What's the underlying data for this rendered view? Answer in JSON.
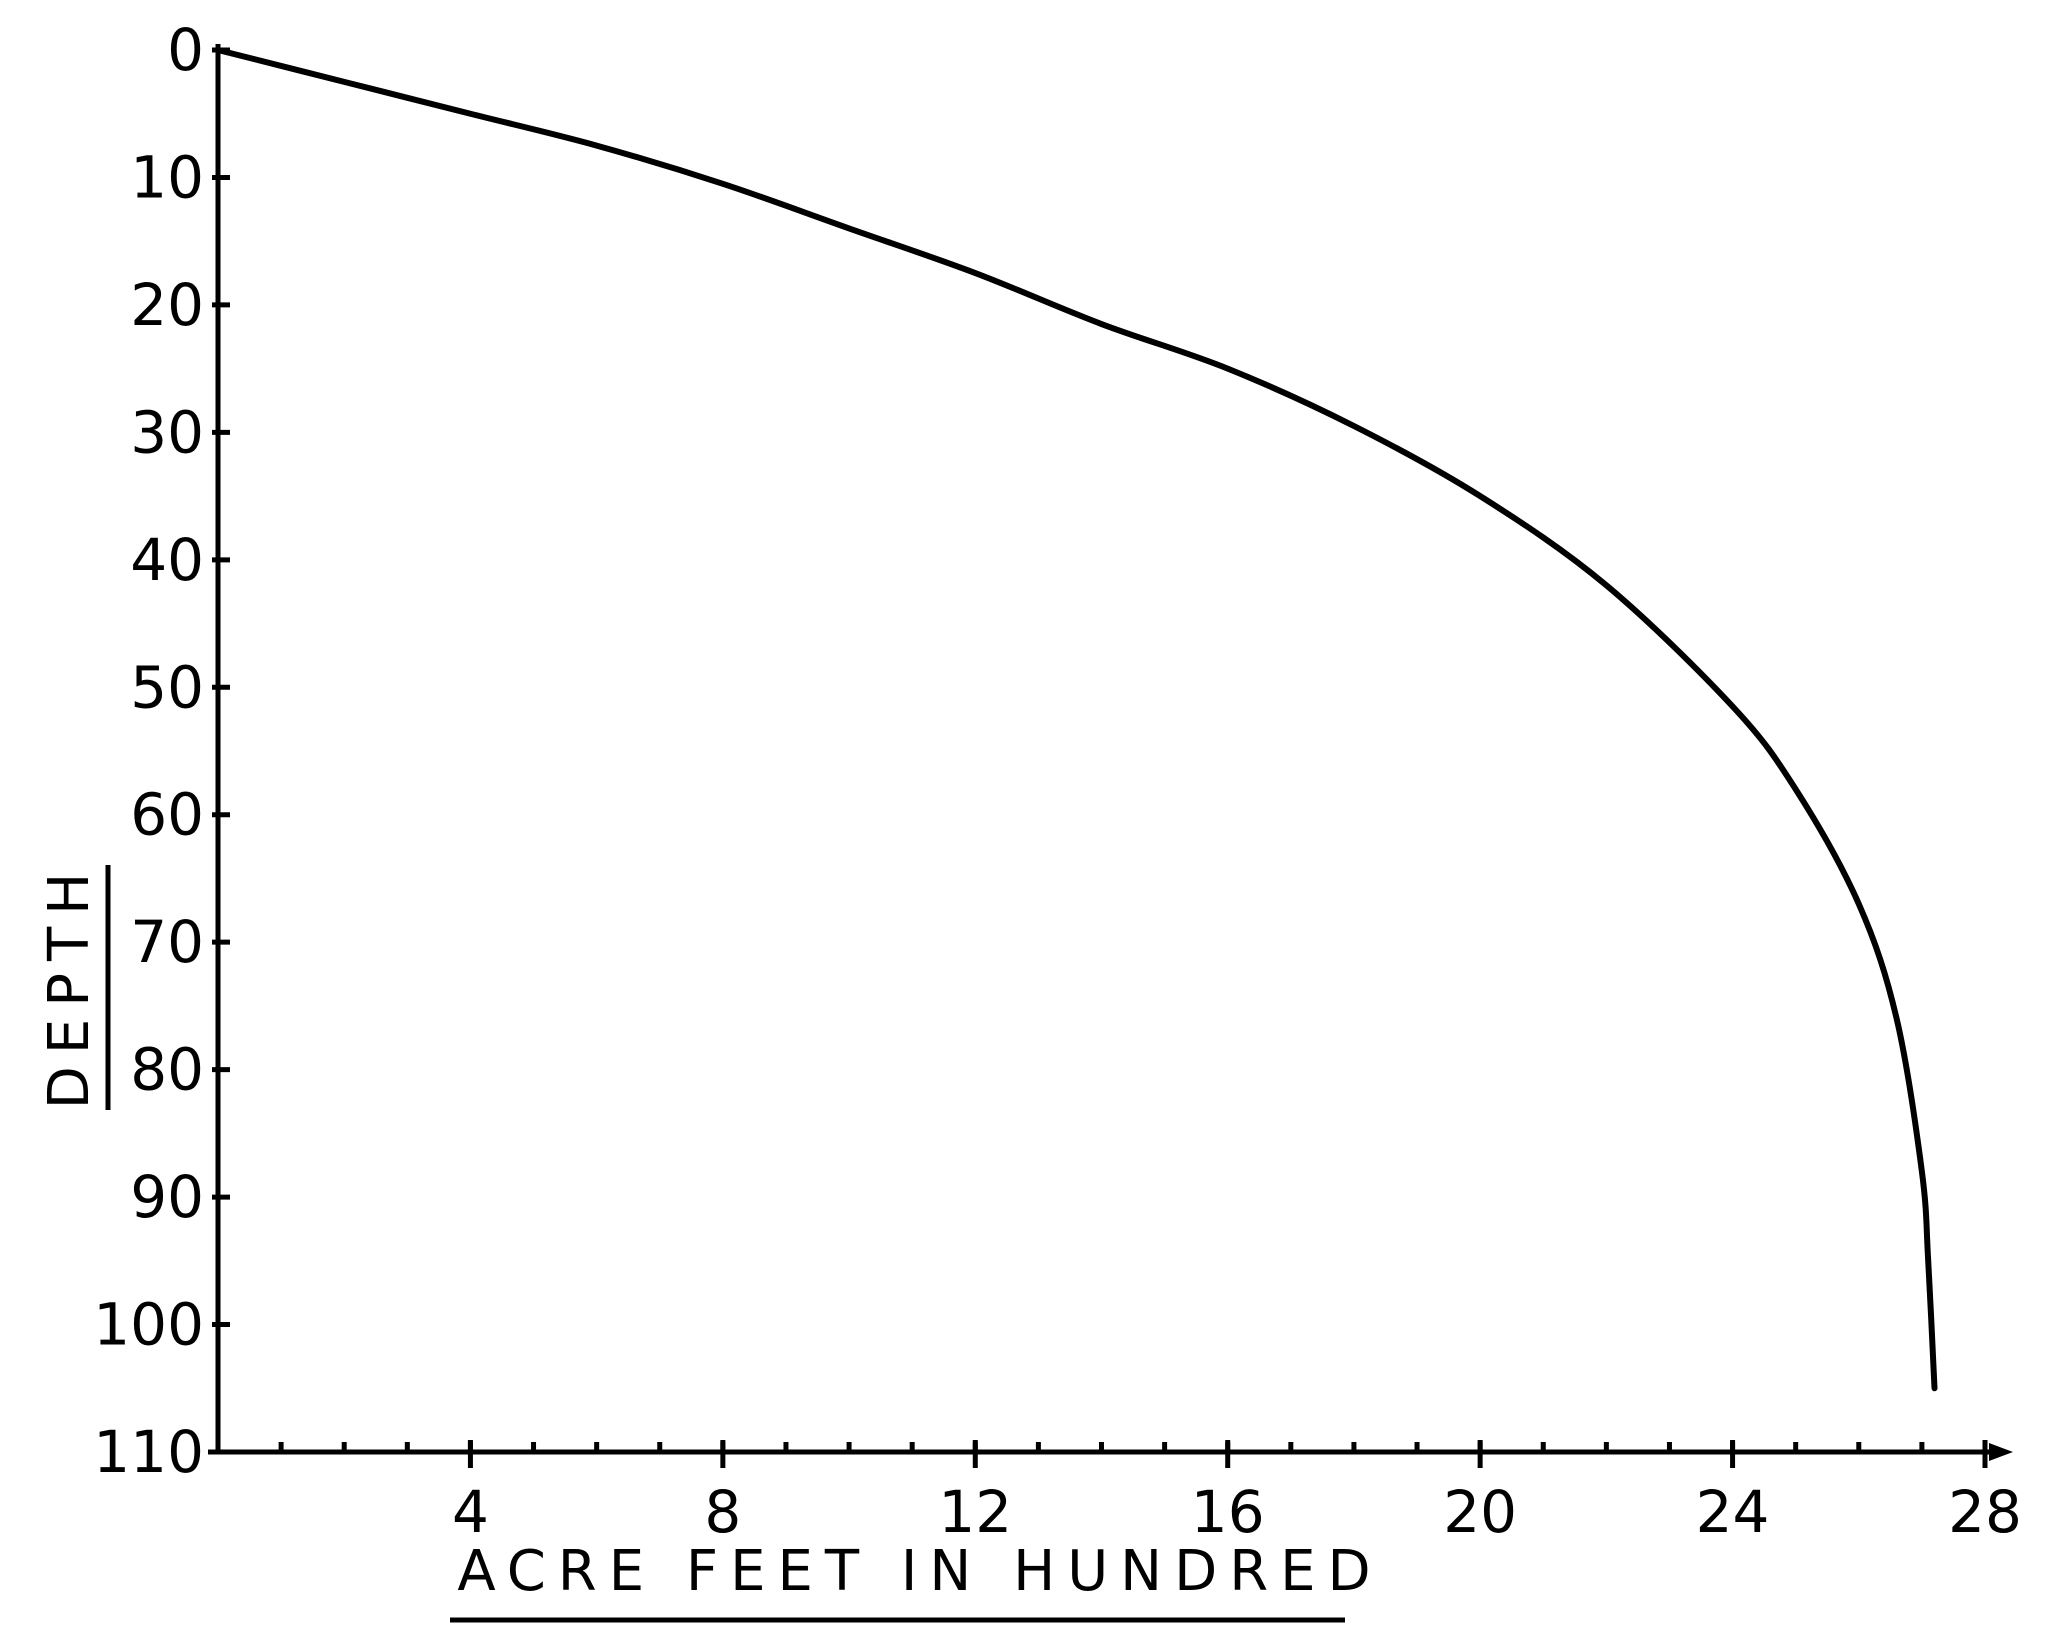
{
  "chart_data": {
    "type": "line",
    "title": "",
    "xlabel": "ACRE FEET IN HUNDRED",
    "ylabel": "DEPTH",
    "xlim": [
      0,
      28
    ],
    "ylim": [
      0,
      110
    ],
    "y_inverted": true,
    "grid": false,
    "x_ticks": [
      4,
      8,
      12,
      16,
      20,
      24,
      28
    ],
    "x_tick_labels": [
      "4",
      "8",
      "12",
      "16",
      "20",
      "24",
      "28"
    ],
    "y_ticks": [
      0,
      10,
      20,
      30,
      40,
      50,
      60,
      70,
      80,
      90,
      100,
      110
    ],
    "y_tick_labels": [
      "0",
      "10",
      "20",
      "30",
      "40",
      "50",
      "60",
      "70",
      "80",
      "90",
      "100",
      "110"
    ],
    "x_minor_step": 1,
    "series": [
      {
        "color": "#000000",
        "x": [
          0,
          2,
          4,
          6,
          8,
          10,
          12,
          14,
          16,
          18,
          20,
          22,
          24,
          25,
          26,
          26.6,
          27,
          27.1,
          27.2
        ],
        "y": [
          0,
          2.5,
          5,
          7.5,
          10.5,
          14,
          17.5,
          21.5,
          25,
          29.5,
          35,
          42,
          51.5,
          58,
          67,
          76,
          88,
          95,
          105
        ]
      }
    ]
  }
}
